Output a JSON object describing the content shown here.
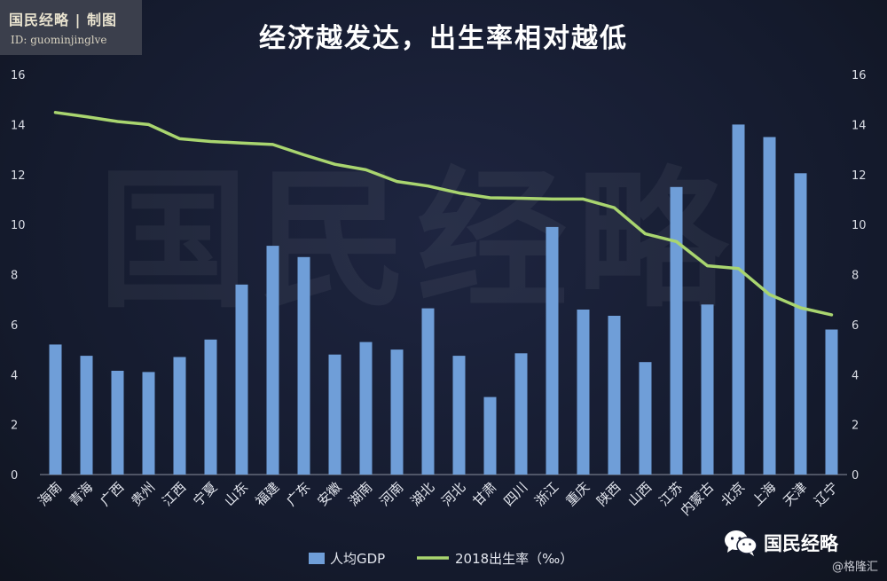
{
  "badge": {
    "brand": "国民经略 | 制图",
    "id_line": "ID: guominjinglve"
  },
  "watermark": "国民经略",
  "logo": {
    "text": "国民经略",
    "icon": "wechat-icon"
  },
  "credit": "@格隆汇",
  "colors": {
    "bar": "#6f9ed8",
    "line": "#a9d56f",
    "background": "#151a2e"
  },
  "chart_data": {
    "type": "bar",
    "title": "经济越发达，出生率相对越低",
    "categories": [
      "海南",
      "青海",
      "广西",
      "贵州",
      "江西",
      "宁夏",
      "山东",
      "福建",
      "广东",
      "安徽",
      "湖南",
      "河南",
      "湖北",
      "河北",
      "甘肃",
      "四川",
      "浙江",
      "重庆",
      "陕西",
      "山西",
      "江苏",
      "内蒙古",
      "北京",
      "上海",
      "天津",
      "辽宁"
    ],
    "series": [
      {
        "name": "人均GDP",
        "type": "bar",
        "axis": "left",
        "values": [
          5.2,
          4.75,
          4.15,
          4.1,
          4.7,
          5.4,
          7.6,
          9.15,
          8.7,
          4.8,
          5.3,
          5.0,
          6.65,
          4.75,
          3.1,
          4.85,
          9.9,
          6.6,
          6.35,
          4.5,
          11.5,
          6.8,
          14.0,
          13.5,
          12.05,
          5.8
        ]
      },
      {
        "name": "2018出生率（‰）",
        "type": "line",
        "axis": "right",
        "values": [
          14.48,
          14.31,
          14.12,
          14.0,
          13.43,
          13.32,
          13.26,
          13.2,
          12.79,
          12.41,
          12.19,
          11.72,
          11.54,
          11.26,
          11.07,
          11.05,
          11.02,
          11.02,
          10.67,
          9.63,
          9.32,
          8.35,
          8.24,
          7.2,
          6.67,
          6.39
        ]
      }
    ],
    "y_left": {
      "min": 0,
      "max": 16,
      "ticks": [
        "0",
        "2",
        "4",
        "6",
        "8",
        "10",
        "12",
        "14",
        "16"
      ]
    },
    "y_right": {
      "min": 0,
      "max": 16,
      "ticks": [
        "0",
        "2",
        "4",
        "6",
        "8",
        "10",
        "12",
        "14",
        "16"
      ]
    },
    "grid": false,
    "legend": {
      "placement": "bottom-center",
      "items": [
        "人均GDP",
        "2018出生率（‰）"
      ]
    }
  }
}
